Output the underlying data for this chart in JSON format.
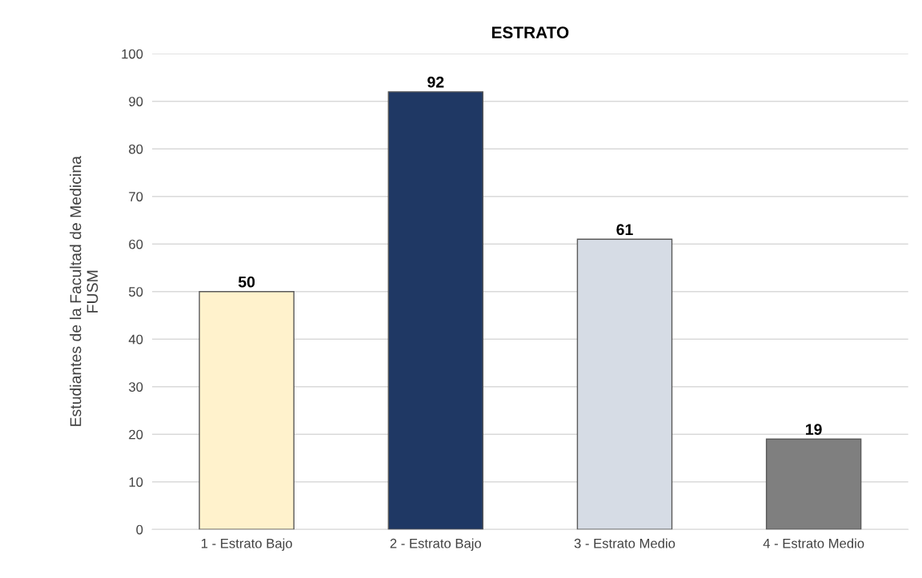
{
  "chart_data": {
    "type": "bar",
    "title": "ESTRATO",
    "ylabel": "Estudiantes de la Facultad de Medicina\nFUSM",
    "categories": [
      "1 - Estrato Bajo",
      "2 - Estrato Bajo",
      "3 - Estrato Medio",
      "4 - Estrato Medio"
    ],
    "values": [
      50,
      92,
      61,
      19
    ],
    "colors": [
      "#fff2cc",
      "#1f3864",
      "#d6dce5",
      "#7f7f7f"
    ],
    "ylim": [
      0,
      100
    ],
    "yticks": [
      0,
      10,
      20,
      30,
      40,
      50,
      60,
      70,
      80,
      90,
      100
    ],
    "grid": "y",
    "data_labels": true,
    "legend": false
  }
}
